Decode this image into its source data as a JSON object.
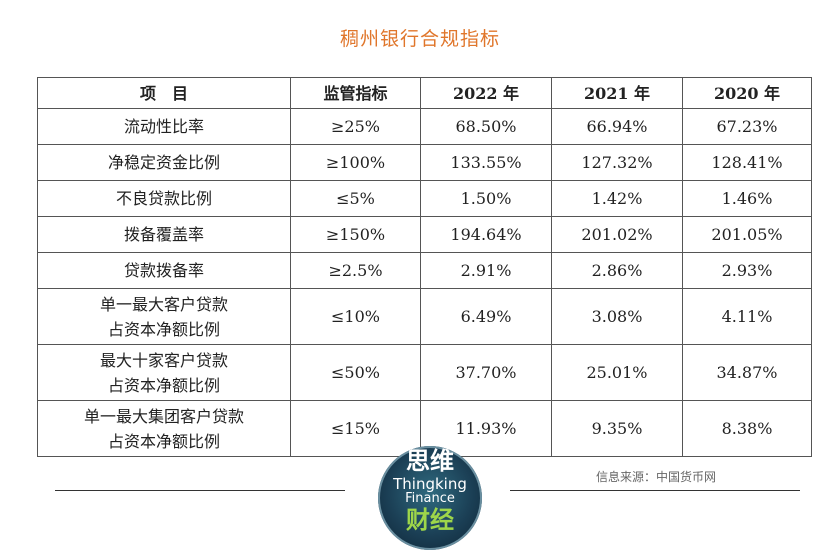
{
  "title": "稠州银行合规指标",
  "table": {
    "headers": [
      "项　目",
      "监管指标",
      "2022 年",
      "2021 年",
      "2020 年"
    ],
    "rows": [
      {
        "item": "流动性比率",
        "item2": "",
        "req": "≥25%",
        "y2022": "68.50%",
        "y2021": "66.94%",
        "y2020": "67.23%"
      },
      {
        "item": "净稳定资金比例",
        "item2": "",
        "req": "≥100%",
        "y2022": "133.55%",
        "y2021": "127.32%",
        "y2020": "128.41%"
      },
      {
        "item": "不良贷款比例",
        "item2": "",
        "req": "≤5%",
        "y2022": "1.50%",
        "y2021": "1.42%",
        "y2020": "1.46%"
      },
      {
        "item": "拨备覆盖率",
        "item2": "",
        "req": "≥150%",
        "y2022": "194.64%",
        "y2021": "201.02%",
        "y2020": "201.05%"
      },
      {
        "item": "贷款拨备率",
        "item2": "",
        "req": "≥2.5%",
        "y2022": "2.91%",
        "y2021": "2.86%",
        "y2020": "2.93%"
      },
      {
        "item": "单一最大客户贷款",
        "item2": "占资本净额比例",
        "req": "≤10%",
        "y2022": "6.49%",
        "y2021": "3.08%",
        "y2020": "4.11%"
      },
      {
        "item": "最大十家客户贷款",
        "item2": "占资本净额比例",
        "req": "≤50%",
        "y2022": "37.70%",
        "y2021": "25.01%",
        "y2020": "34.87%"
      },
      {
        "item": "单一最大集团客户贷款",
        "item2": "占资本净额比例",
        "req": "≤15%",
        "y2022": "11.93%",
        "y2021": "9.35%",
        "y2020": "8.38%"
      }
    ]
  },
  "source": "信息来源：中国货币网",
  "logo": {
    "cn_top": "思维",
    "en_line1": "Thingking",
    "en_line2": "Finance",
    "cn_bottom": "财经"
  }
}
